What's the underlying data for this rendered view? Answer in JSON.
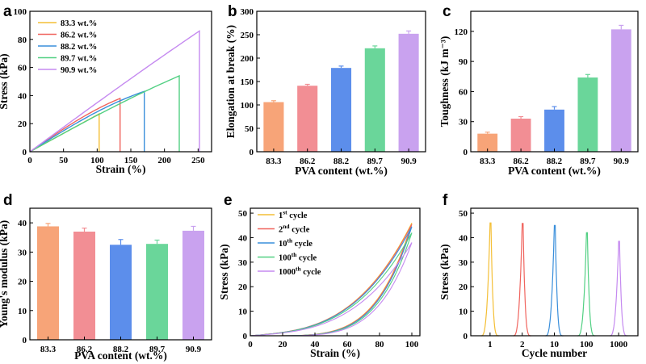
{
  "colors": {
    "c1": "#F4BF36",
    "c2": "#F0645E",
    "c3": "#3A8FDB",
    "c4": "#52D083",
    "c5": "#C58AF0",
    "b1": "#F7A478",
    "b2": "#F28E94",
    "b3": "#5C8EEB",
    "b4": "#6AD69A",
    "b5": "#C9A2EF"
  },
  "chart_data": [
    {
      "id": "a",
      "panel_label": "a",
      "type": "line",
      "xlabel": "Strain (%)",
      "ylabel": "Stress (kPa)",
      "xlim": [
        0,
        270
      ],
      "ylim": [
        0,
        100
      ],
      "xticks": [
        "0",
        "50",
        "100",
        "150",
        "200",
        "250"
      ],
      "yticks": [
        "0",
        "20",
        "40",
        "60",
        "80",
        "100"
      ],
      "legend": [
        "83.3 wt.%",
        "86.2 wt.%",
        "88.2 wt.%",
        "89.7 wt.%",
        "90.9 wt.%"
      ],
      "series": [
        {
          "name": "83.3 wt.%",
          "break_strain": 103,
          "peak_stress": 27
        },
        {
          "name": "86.2 wt.%",
          "break_strain": 134,
          "peak_stress": 38
        },
        {
          "name": "88.2 wt.%",
          "break_strain": 170,
          "peak_stress": 43
        },
        {
          "name": "89.7 wt.%",
          "break_strain": 222,
          "peak_stress": 54
        },
        {
          "name": "90.9 wt.%",
          "break_strain": 252,
          "peak_stress": 86
        }
      ]
    },
    {
      "id": "b",
      "panel_label": "b",
      "type": "bar",
      "xlabel": "PVA content (wt.%)",
      "ylabel": "Elongation at break (%)",
      "ylim": [
        0,
        300
      ],
      "yticks": [
        "0",
        "50",
        "100",
        "150",
        "200",
        "250",
        "300"
      ],
      "categories": [
        "83.3",
        "86.2",
        "88.2",
        "89.7",
        "90.9"
      ],
      "values": [
        106,
        141,
        179,
        221,
        252
      ],
      "errors": [
        3,
        3,
        4,
        5,
        6
      ]
    },
    {
      "id": "c",
      "panel_label": "c",
      "type": "bar",
      "xlabel": "PVA content (wt.%)",
      "ylabel": "Toughness (kJ m⁻³)",
      "ylim": [
        0,
        140
      ],
      "yticks": [
        "0",
        "30",
        "60",
        "90",
        "120"
      ],
      "categories": [
        "83.3",
        "86.2",
        "88.2",
        "89.7",
        "90.9"
      ],
      "values": [
        18,
        33,
        42,
        74,
        122
      ],
      "errors": [
        1.5,
        2,
        3,
        3,
        4
      ]
    },
    {
      "id": "d",
      "panel_label": "d",
      "type": "bar",
      "xlabel": "PVA content (wt.%)",
      "ylabel": "Young's modulus (kPa)",
      "ylim": [
        0,
        45
      ],
      "yticks": [
        "0",
        "10",
        "20",
        "30",
        "40"
      ],
      "categories": [
        "83.3",
        "86.2",
        "88.2",
        "89.7",
        "90.9"
      ],
      "values": [
        38.8,
        37.0,
        32.5,
        32.8,
        37.3
      ],
      "errors": [
        1.0,
        1.2,
        1.8,
        1.3,
        1.5
      ]
    },
    {
      "id": "e",
      "panel_label": "e",
      "type": "line",
      "xlabel": "Strain (%)",
      "ylabel": "Stress (kPa)",
      "xlim": [
        0,
        105
      ],
      "ylim": [
        0,
        52
      ],
      "xticks": [
        "0",
        "20",
        "40",
        "60",
        "80",
        "100"
      ],
      "yticks": [
        "0",
        "10",
        "20",
        "30",
        "40",
        "50"
      ],
      "legend": [
        {
          "base": "1",
          "sup": "st",
          "rest": " cycle"
        },
        {
          "base": "2",
          "sup": "nd",
          "rest": " cycle"
        },
        {
          "base": "10",
          "sup": "th",
          "rest": " cycle"
        },
        {
          "base": "100",
          "sup": "th",
          "rest": " cycle"
        },
        {
          "base": "1000",
          "sup": "th",
          "rest": " cycle"
        }
      ],
      "series": [
        {
          "name": "1st cycle",
          "max_strain": 100,
          "peak_stress": 46
        },
        {
          "name": "2nd cycle",
          "max_strain": 100,
          "peak_stress": 45.5
        },
        {
          "name": "10th cycle",
          "max_strain": 100,
          "peak_stress": 44.5
        },
        {
          "name": "100th cycle",
          "max_strain": 100,
          "peak_stress": 42
        },
        {
          "name": "1000th cycle",
          "max_strain": 100,
          "peak_stress": 38
        }
      ]
    },
    {
      "id": "f",
      "panel_label": "f",
      "type": "line",
      "xlabel": "Cycle number",
      "ylabel": "Stress (kPa)",
      "ylim": [
        0,
        52
      ],
      "xticks": [
        "1",
        "2",
        "10",
        "100",
        "1000"
      ],
      "yticks": [
        "0",
        "10",
        "20",
        "30",
        "40",
        "50"
      ],
      "peaks": [
        46,
        45.8,
        45,
        42,
        38.5
      ]
    }
  ]
}
